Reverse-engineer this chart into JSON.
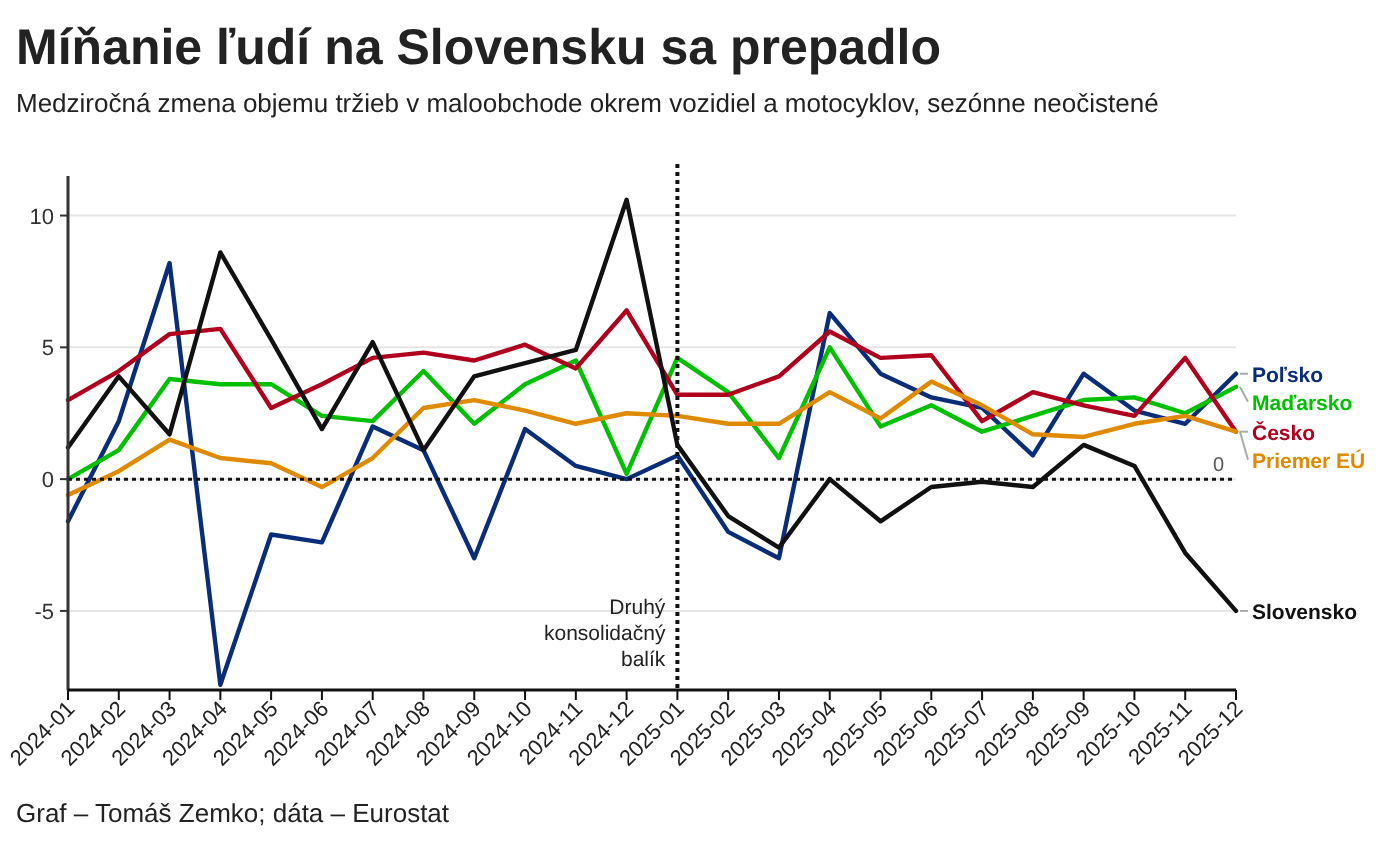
{
  "chart_data": {
    "type": "line",
    "title": "Míňanie ľudí na Slovensku sa prepadlo",
    "subtitle": "Medziročná zmena objemu tržieb v maloobchode okrem vozidiel a motocyklov, sezónne neočistené",
    "categories": [
      "2024-01",
      "2024-02",
      "2024-03",
      "2024-04",
      "2024-05",
      "2024-06",
      "2024-07",
      "2024-08",
      "2024-09",
      "2024-10",
      "2024-11",
      "2024-12",
      "2025-01",
      "2025-02",
      "2025-03",
      "2025-04",
      "2025-05",
      "2025-06",
      "2025-07",
      "2025-08",
      "2025-09",
      "2025-10",
      "2025-11",
      "2025-12"
    ],
    "series": [
      {
        "name": "Poľsko",
        "color": "#0a2d7a",
        "values": [
          -1.6,
          2.2,
          8.2,
          -7.8,
          -2.1,
          -2.4,
          2.0,
          1.1,
          -3.0,
          1.9,
          0.5,
          0.0,
          0.9,
          -2.0,
          -3.0,
          6.3,
          4.0,
          3.1,
          2.7,
          0.9,
          4.0,
          2.6,
          2.1,
          4.0
        ]
      },
      {
        "name": "Maďarsko",
        "color": "#00c000",
        "values": [
          0.0,
          1.1,
          3.8,
          3.6,
          3.6,
          2.4,
          2.2,
          4.1,
          2.1,
          3.6,
          4.5,
          0.2,
          4.6,
          3.3,
          0.8,
          5.0,
          2.0,
          2.8,
          1.8,
          2.4,
          3.0,
          3.1,
          2.5,
          3.5
        ]
      },
      {
        "name": "Česko",
        "color": "#b0001e",
        "values": [
          3.0,
          4.1,
          5.5,
          5.7,
          2.7,
          3.6,
          4.6,
          4.8,
          4.5,
          5.1,
          4.2,
          6.4,
          3.2,
          3.2,
          3.9,
          5.6,
          4.6,
          4.7,
          2.2,
          3.3,
          2.8,
          2.4,
          4.6,
          1.8
        ]
      },
      {
        "name": "Priemer EÚ",
        "color": "#e08a00",
        "values": [
          -0.6,
          0.3,
          1.5,
          0.8,
          0.6,
          -0.3,
          0.8,
          2.7,
          3.0,
          2.6,
          2.1,
          2.5,
          2.4,
          2.1,
          2.1,
          3.3,
          2.3,
          3.7,
          2.8,
          1.7,
          1.6,
          2.1,
          2.4,
          1.8
        ]
      },
      {
        "name": "Slovensko",
        "color": "#111111",
        "values": [
          1.2,
          3.9,
          1.7,
          8.6,
          5.3,
          1.9,
          5.2,
          1.1,
          3.9,
          4.4,
          4.9,
          10.6,
          1.3,
          -1.4,
          -2.6,
          0.0,
          -1.6,
          -0.3,
          -0.1,
          -0.3,
          1.3,
          0.5,
          -2.8,
          -5.0
        ]
      }
    ],
    "ylim": [
      -8,
      11.5
    ],
    "yticks": [
      -5,
      0,
      5,
      10
    ],
    "grid": "y",
    "legend": "right",
    "line_style": "solid",
    "marker": "none",
    "ref_lines": [
      {
        "axis": "y",
        "value": 0,
        "label": "0",
        "line_style": "dotted"
      },
      {
        "axis": "x",
        "value": "2025-01",
        "label": "Druhý konsolidačný balík",
        "line_style": "dotted"
      }
    ],
    "annotations": [
      "Graf – Tomáš Zemko; dáta – Eurostat"
    ]
  }
}
